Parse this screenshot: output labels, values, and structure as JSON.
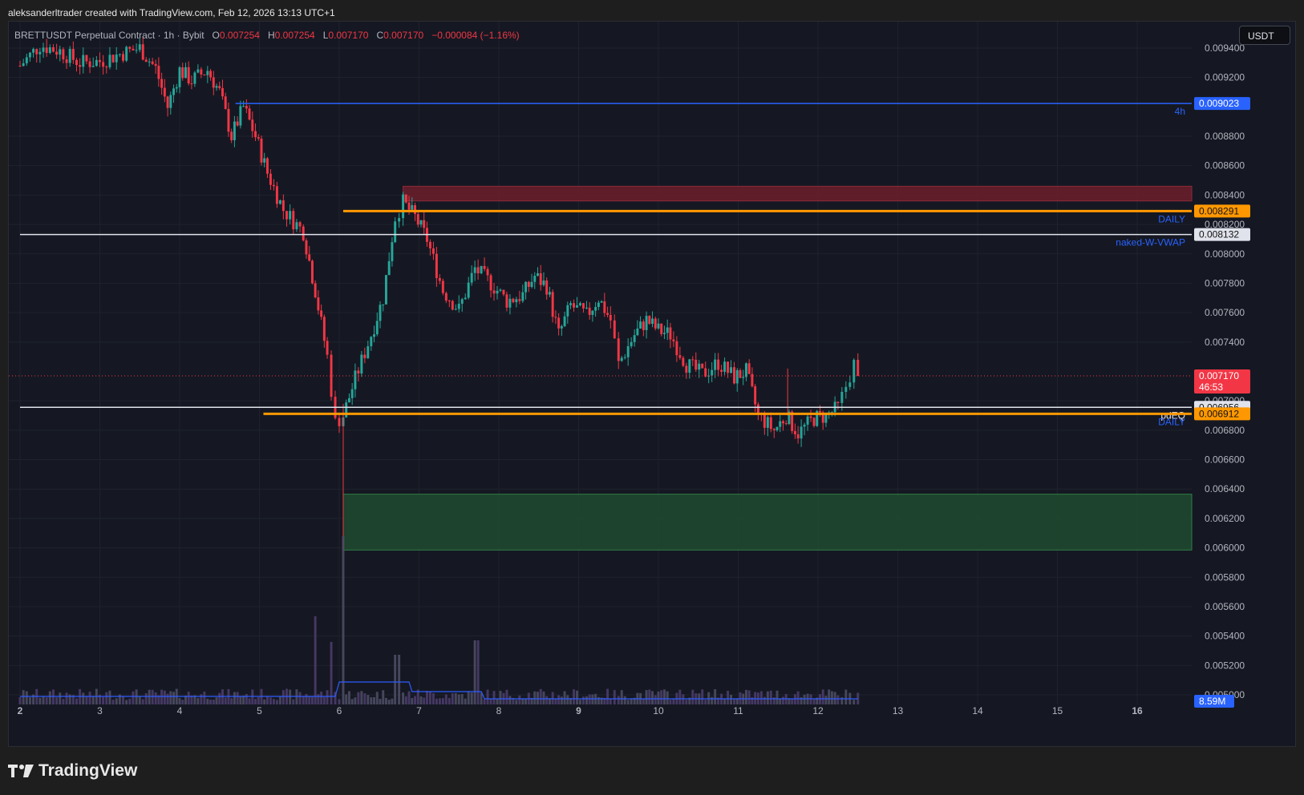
{
  "header": {
    "attribution": "aleksanderltrader created with TradingView.com, Feb 12, 2026 13:13 UTC+1"
  },
  "legend": {
    "symbol": "BRETTUSDT Perpetual Contract · 1h · Bybit",
    "o_label": "O",
    "o_value": "0.007254",
    "h_label": "H",
    "h_value": "0.007254",
    "l_label": "L",
    "l_value": "0.007170",
    "c_label": "C",
    "c_value": "0.007170",
    "change": "−0.000084 (−1.16%)"
  },
  "currency_button": "USDT",
  "footer": {
    "brand": "TradingView"
  },
  "colors": {
    "up": "#26a69a",
    "down": "#f23645",
    "blue": "#2962ff",
    "orange": "#ff9800",
    "white_line": "#e0e3eb",
    "supply_zone": "#6b1f2a",
    "demand_zone": "#1f4a2f",
    "volume_up": "#4b4b63",
    "volume_down": "#4a3c6b",
    "vol_ma": "#2f5bff"
  },
  "chart_data": {
    "type": "candlestick",
    "symbol": "BRETTUSDT",
    "timeframe": "1h",
    "exchange": "Bybit",
    "ylim": [
      0.005,
      0.0095
    ],
    "y_ticks": [
      "0.009400",
      "0.009200",
      "0.008800",
      "0.008600",
      "0.008400",
      "0.008200",
      "0.008000",
      "0.007800",
      "0.007600",
      "0.007400",
      "0.007000",
      "0.006800",
      "0.006600",
      "0.006400",
      "0.006200",
      "0.006000",
      "0.005800",
      "0.005600",
      "0.005400",
      "0.005200",
      "0.005000"
    ],
    "x_ticks": [
      {
        "label": "2",
        "pos": 2,
        "bold": true
      },
      {
        "label": "3",
        "pos": 3
      },
      {
        "label": "4",
        "pos": 4
      },
      {
        "label": "5",
        "pos": 5
      },
      {
        "label": "6",
        "pos": 6
      },
      {
        "label": "7",
        "pos": 7
      },
      {
        "label": "8",
        "pos": 8
      },
      {
        "label": "9",
        "pos": 9,
        "bold": true
      },
      {
        "label": "10",
        "pos": 10
      },
      {
        "label": "11",
        "pos": 11
      },
      {
        "label": "12",
        "pos": 12
      },
      {
        "label": "13",
        "pos": 13
      },
      {
        "label": "14",
        "pos": 14
      },
      {
        "label": "15",
        "pos": 15
      },
      {
        "label": "16",
        "pos": 16,
        "bold": true
      }
    ],
    "x_range": [
      2.0,
      16.7
    ],
    "price_path": [
      [
        2.0,
        0.00928
      ],
      [
        2.25,
        0.00942
      ],
      [
        2.5,
        0.00938
      ],
      [
        2.75,
        0.0093
      ],
      [
        3.0,
        0.00931
      ],
      [
        3.25,
        0.00936
      ],
      [
        3.5,
        0.0094
      ],
      [
        3.7,
        0.00926
      ],
      [
        3.85,
        0.009
      ],
      [
        4.0,
        0.00925
      ],
      [
        4.15,
        0.00918
      ],
      [
        4.35,
        0.00925
      ],
      [
        4.5,
        0.0091
      ],
      [
        4.65,
        0.0088
      ],
      [
        4.8,
        0.009
      ],
      [
        4.95,
        0.0088
      ],
      [
        5.1,
        0.00855
      ],
      [
        5.3,
        0.0083
      ],
      [
        5.55,
        0.00815
      ],
      [
        5.7,
        0.00775
      ],
      [
        5.85,
        0.0073
      ],
      [
        5.95,
        0.00685
      ],
      [
        6.05,
        0.0069
      ],
      [
        6.2,
        0.00715
      ],
      [
        6.4,
        0.00745
      ],
      [
        6.55,
        0.0077
      ],
      [
        6.7,
        0.00825
      ],
      [
        6.8,
        0.00835
      ],
      [
        6.95,
        0.00825
      ],
      [
        7.1,
        0.0081
      ],
      [
        7.3,
        0.00775
      ],
      [
        7.5,
        0.00762
      ],
      [
        7.7,
        0.0079
      ],
      [
        7.9,
        0.0078
      ],
      [
        8.1,
        0.00768
      ],
      [
        8.3,
        0.00772
      ],
      [
        8.45,
        0.00785
      ],
      [
        8.6,
        0.00778
      ],
      [
        8.75,
        0.00745
      ],
      [
        8.9,
        0.00765
      ],
      [
        9.1,
        0.00758
      ],
      [
        9.25,
        0.0077
      ],
      [
        9.4,
        0.00755
      ],
      [
        9.5,
        0.00725
      ],
      [
        9.7,
        0.00745
      ],
      [
        9.85,
        0.00755
      ],
      [
        10.0,
        0.00748
      ],
      [
        10.15,
        0.00745
      ],
      [
        10.35,
        0.00725
      ],
      [
        10.55,
        0.00718
      ],
      [
        10.75,
        0.00726
      ],
      [
        10.95,
        0.00716
      ],
      [
        11.1,
        0.0072
      ],
      [
        11.25,
        0.0069
      ],
      [
        11.45,
        0.0068
      ],
      [
        11.6,
        0.0069
      ],
      [
        11.75,
        0.00678
      ],
      [
        11.95,
        0.00688
      ],
      [
        12.1,
        0.0069
      ],
      [
        12.25,
        0.00695
      ],
      [
        12.35,
        0.0071
      ],
      [
        12.45,
        0.00725
      ],
      [
        12.55,
        0.00717
      ]
    ],
    "levels": [
      {
        "price": 0.009023,
        "color": "blue",
        "from": 4.7,
        "label": "4h",
        "tag": "0.009023"
      },
      {
        "price": 0.008291,
        "color": "orange",
        "from": 6.05,
        "label": "DAILY",
        "tag": "0.008291"
      },
      {
        "price": 0.008132,
        "color": "white",
        "from": 2.0,
        "label": "naked-W-VWAP",
        "tag": "0.008132"
      },
      {
        "price": 0.006956,
        "color": "white",
        "from": 2.0,
        "label": "pdEQ",
        "tag": "0.006956"
      },
      {
        "price": 0.006912,
        "color": "orange",
        "from": 5.05,
        "label": "DAILY",
        "tag": "0.006912"
      }
    ],
    "current_price": {
      "value": "0.007170",
      "countdown": "46:53",
      "price": 0.00717
    },
    "zones": [
      {
        "kind": "supply",
        "top": 0.00846,
        "bottom": 0.00836,
        "from": 6.8
      },
      {
        "kind": "demand",
        "top": 0.006365,
        "bottom": 0.005985,
        "from": 6.05
      }
    ],
    "volume_label": "8.59M"
  }
}
